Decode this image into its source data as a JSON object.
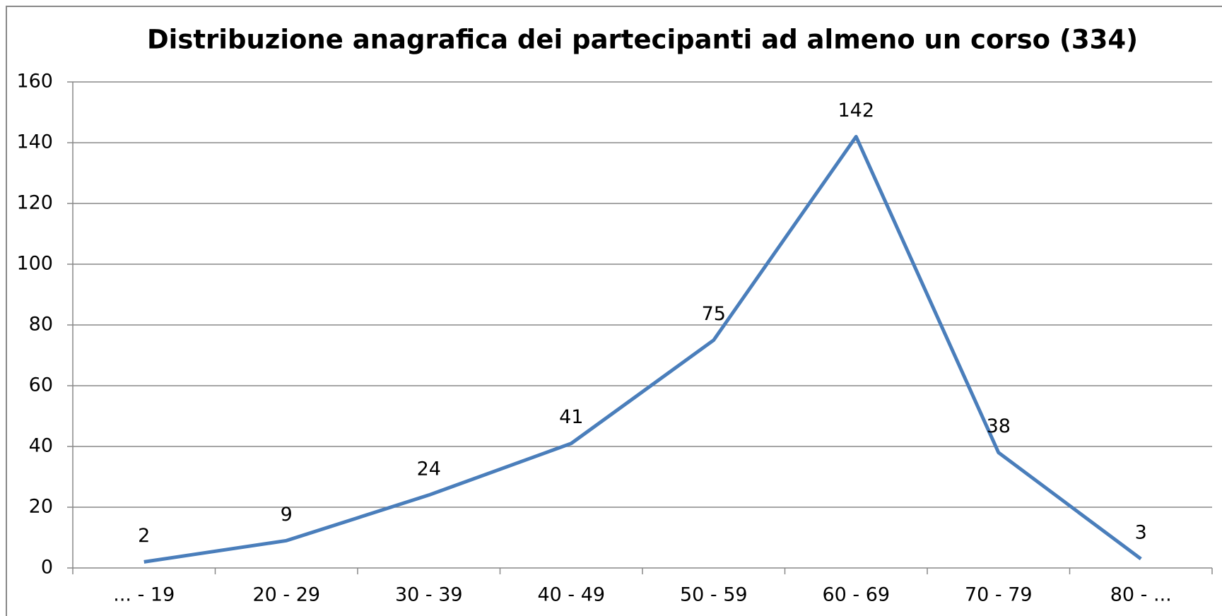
{
  "chart_data": {
    "type": "line",
    "title": "Distribuzione anagrafica dei partecipanti ad almeno un corso (334)",
    "categories": [
      "... - 19",
      "20 - 29",
      "30 - 39",
      "40 - 49",
      "50 - 59",
      "60 - 69",
      "70 - 79",
      "80 - ..."
    ],
    "values": [
      2,
      9,
      24,
      41,
      75,
      142,
      38,
      3
    ],
    "color": "#4a7ebb",
    "ylim": [
      0,
      160
    ],
    "yticks": [
      0,
      20,
      40,
      60,
      80,
      100,
      120,
      140,
      160
    ],
    "grid": true
  }
}
